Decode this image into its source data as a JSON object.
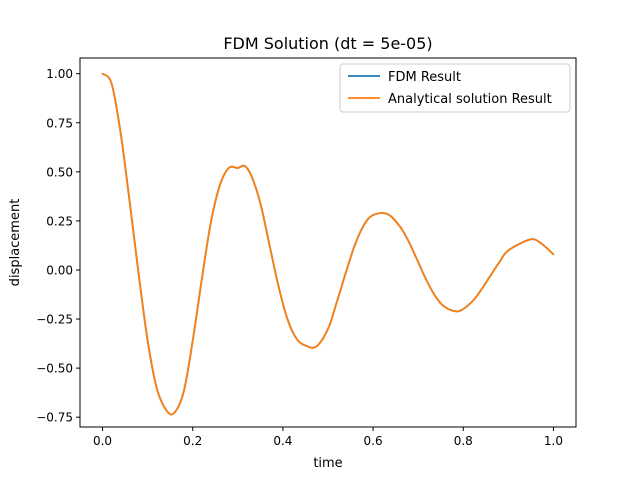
{
  "chart_data": {
    "type": "line",
    "title": "FDM Solution (dt = 5e-05)",
    "xlabel": "time",
    "ylabel": "displacement",
    "xlim": [
      -0.05,
      1.05
    ],
    "ylim": [
      -0.8,
      1.08
    ],
    "xticks": [
      0.0,
      0.2,
      0.4,
      0.6,
      0.8,
      1.0
    ],
    "xtick_labels": [
      "0.0",
      "0.2",
      "0.4",
      "0.6",
      "0.8",
      "1.0"
    ],
    "yticks": [
      -0.75,
      -0.5,
      -0.25,
      0.0,
      0.25,
      0.5,
      0.75,
      1.0
    ],
    "ytick_labels": [
      "−0.75",
      "−0.50",
      "−0.25",
      "0.00",
      "0.25",
      "0.50",
      "0.75",
      "1.00"
    ],
    "grid": false,
    "legend_position": "top-right",
    "x": [
      0.0,
      0.02,
      0.04,
      0.06,
      0.08,
      0.1,
      0.12,
      0.14,
      0.158,
      0.18,
      0.2,
      0.22,
      0.24,
      0.26,
      0.28,
      0.3,
      0.315,
      0.33,
      0.35,
      0.37,
      0.39,
      0.41,
      0.43,
      0.45,
      0.474,
      0.5,
      0.52,
      0.54,
      0.56,
      0.58,
      0.6,
      0.632,
      0.66,
      0.68,
      0.7,
      0.72,
      0.74,
      0.76,
      0.79,
      0.82,
      0.84,
      0.86,
      0.88,
      0.9,
      0.948,
      0.97,
      1.0
    ],
    "series": [
      {
        "name": "FDM Result",
        "color": "#1f77b4",
        "values": [
          1.0,
          0.95,
          0.7,
          0.35,
          -0.02,
          -0.36,
          -0.6,
          -0.71,
          -0.73,
          -0.62,
          -0.36,
          -0.05,
          0.24,
          0.43,
          0.52,
          0.52,
          0.53,
          0.48,
          0.34,
          0.13,
          -0.08,
          -0.25,
          -0.35,
          -0.385,
          -0.39,
          -0.3,
          -0.16,
          -0.01,
          0.13,
          0.23,
          0.28,
          0.285,
          0.22,
          0.14,
          0.04,
          -0.06,
          -0.14,
          -0.19,
          -0.21,
          -0.16,
          -0.1,
          -0.03,
          0.04,
          0.1,
          0.155,
          0.14,
          0.08
        ]
      },
      {
        "name": "Analytical solution Result",
        "color": "#ff7f0e",
        "values": [
          1.0,
          0.95,
          0.7,
          0.35,
          -0.02,
          -0.36,
          -0.6,
          -0.71,
          -0.73,
          -0.62,
          -0.36,
          -0.05,
          0.24,
          0.43,
          0.52,
          0.52,
          0.53,
          0.48,
          0.34,
          0.13,
          -0.08,
          -0.25,
          -0.35,
          -0.385,
          -0.39,
          -0.3,
          -0.16,
          -0.01,
          0.13,
          0.23,
          0.28,
          0.285,
          0.22,
          0.14,
          0.04,
          -0.06,
          -0.14,
          -0.19,
          -0.21,
          -0.16,
          -0.1,
          -0.03,
          0.04,
          0.1,
          0.155,
          0.14,
          0.08
        ]
      }
    ]
  }
}
